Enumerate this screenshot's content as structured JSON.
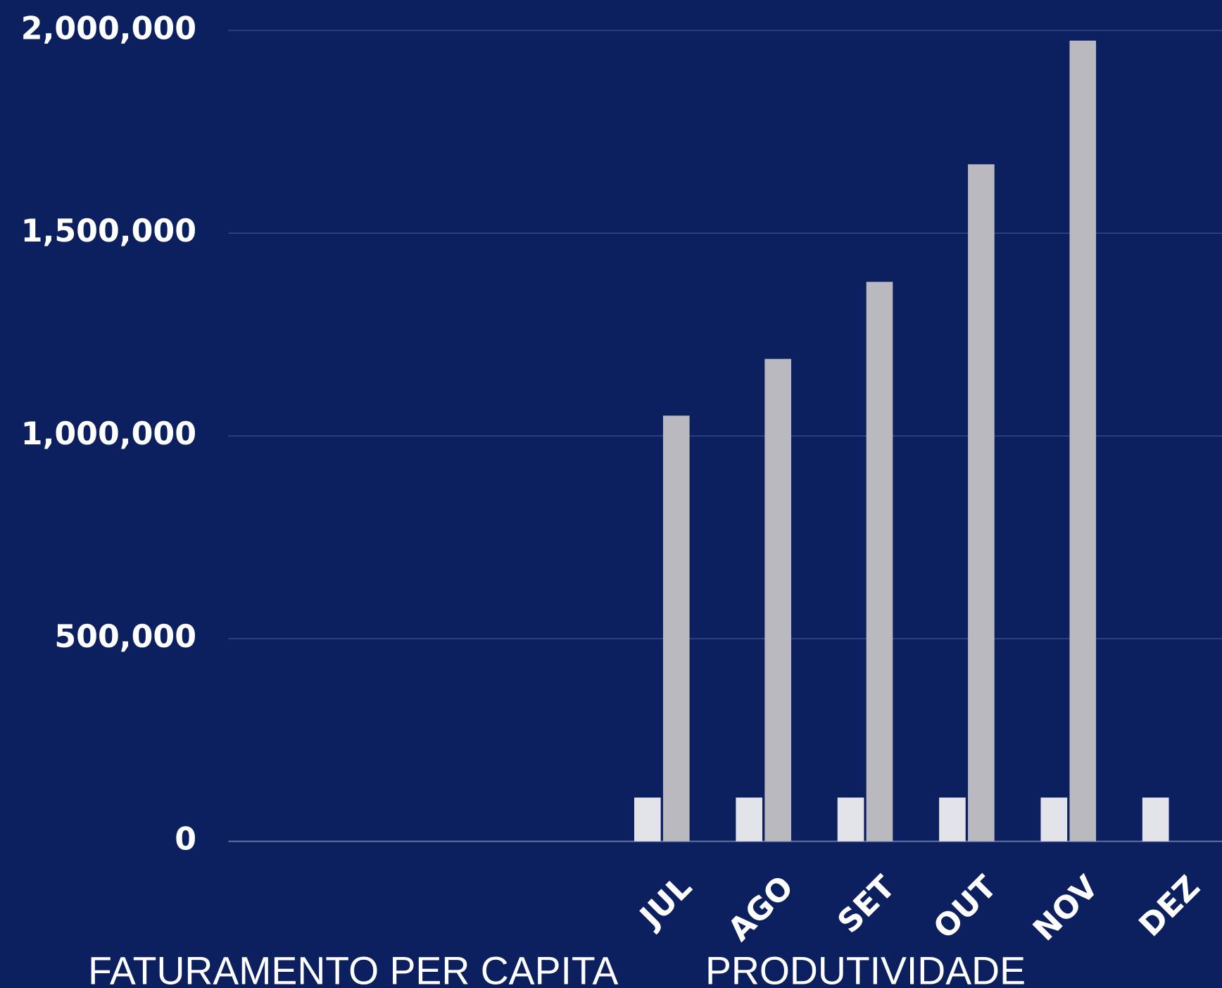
{
  "chart_data": {
    "type": "bar",
    "categories": [
      null,
      null,
      null,
      null,
      "JUL",
      "AGO",
      "SET",
      "OUT",
      "NOV",
      "DEZ"
    ],
    "series": [
      {
        "name": "FATURAMENTO PER CAPITA",
        "color": "#e3e4e9",
        "values": [
          null,
          null,
          null,
          null,
          108000,
          108000,
          108000,
          108000,
          108000,
          108000
        ]
      },
      {
        "name": "PRODUTIVIDADE",
        "color": "#b9b9bf",
        "values": [
          null,
          null,
          null,
          null,
          1050000,
          1190000,
          1380000,
          1670000,
          1975000,
          null
        ]
      }
    ],
    "ylim": [
      0,
      2000000
    ],
    "yticks": [
      0,
      {
        "value": 500000,
        "label": "500,000"
      },
      {
        "value": 1000000,
        "label": "1,000,000"
      },
      {
        "value": 1500000,
        "label": "1,500,000"
      },
      {
        "value": 2000000,
        "label": "2,000,000"
      }
    ],
    "grid": true
  }
}
